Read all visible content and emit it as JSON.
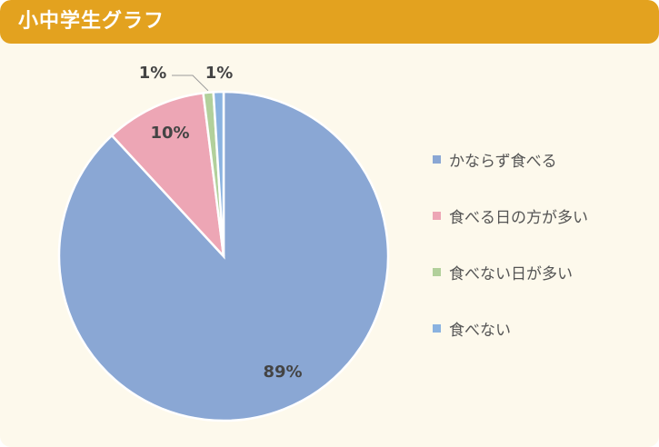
{
  "header": {
    "title": "小中学生グラフ"
  },
  "colors": {
    "header_bg": "#e3a21f",
    "panel_bg": "#fdf9ec"
  },
  "chart_data": {
    "type": "pie",
    "title": "",
    "categories": [
      "かならず食べる",
      "食べる日の方が多い",
      "食べない日が多い",
      "食べない"
    ],
    "values": [
      89,
      10,
      1,
      1
    ],
    "data_labels": [
      "89%",
      "10%",
      "1%",
      "1%"
    ],
    "colors": [
      "#8aa7d4",
      "#eda6b5",
      "#b2d09b",
      "#8ab2e0"
    ],
    "legend_position": "right",
    "start_angle": "top",
    "direction": "clockwise"
  }
}
